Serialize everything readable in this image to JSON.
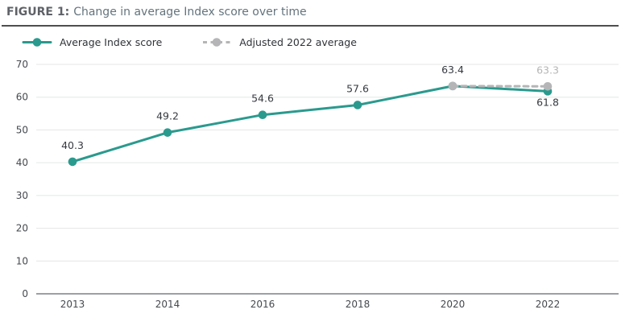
{
  "header": {
    "figure_label": "FIGURE 1:",
    "title": "Change in average Index score over time"
  },
  "chart_data": {
    "type": "line",
    "title": "Change in average Index score over time",
    "x": [
      "2013",
      "2014",
      "2016",
      "2018",
      "2020",
      "2022"
    ],
    "series": [
      {
        "name": "Average Index score",
        "color": "#2a9a8e",
        "line_style": "solid",
        "values": [
          40.3,
          49.2,
          54.6,
          57.6,
          63.4,
          61.8
        ],
        "point_labels": [
          "40.3",
          "49.2",
          "54.6",
          "57.6",
          "63.4",
          "61.8"
        ],
        "label_positions": [
          "above",
          "above",
          "above",
          "above",
          "above",
          "below"
        ],
        "label_color": "#35393f"
      },
      {
        "name": "Adjusted 2022 average",
        "color": "#b5b5b7",
        "line_style": "dashed",
        "values": [
          null,
          null,
          null,
          null,
          63.4,
          63.3
        ],
        "point_labels": [
          null,
          null,
          null,
          null,
          null,
          "63.3"
        ],
        "label_positions": [
          null,
          null,
          null,
          null,
          null,
          "above"
        ],
        "label_color": "#b5b5b7"
      }
    ],
    "ylim": [
      0,
      70
    ],
    "yticks": [
      0,
      10,
      20,
      30,
      40,
      50,
      60,
      70
    ],
    "grid": true,
    "legend_position": "top-left",
    "xlabel": "",
    "ylabel": "",
    "colors": {
      "gridline": "#e4e6e7",
      "axis_baseline": "#9ba0a3",
      "tick_label": "#45494e"
    }
  }
}
